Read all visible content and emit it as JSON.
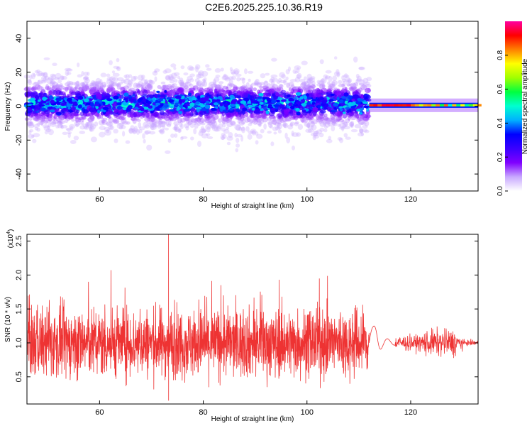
{
  "figure": {
    "title": "C2E6.2025.225.10.36.R19"
  },
  "chart_data": [
    {
      "type": "heatmap",
      "xlabel": "Height of straight line (km)",
      "ylabel": "Frequency (Hz)",
      "xlim": [
        46,
        133
      ],
      "ylim": [
        -50,
        50
      ],
      "x_ticks": [
        60,
        80,
        100,
        120
      ],
      "y_ticks": [
        -40,
        -20,
        0,
        20,
        40
      ],
      "x_tick_labels": [
        "60",
        "80",
        "100",
        "120"
      ],
      "y_tick_labels": [
        "-40",
        "-20",
        "0",
        "20",
        "40"
      ],
      "colorbar": {
        "label": "Normalized spectral amplitude",
        "range": [
          0,
          1
        ],
        "ticks": [
          0.0,
          0.2,
          0.4,
          0.6,
          0.8
        ],
        "tick_labels": [
          "0.0",
          "0.2",
          "0.4",
          "0.6",
          "0.8"
        ],
        "colors": [
          "#ffffff",
          "#c8a8ff",
          "#8000ff",
          "#3a00ff",
          "#0000ff",
          "#00b0ff",
          "#00ffd0",
          "#00ff40",
          "#a0ff00",
          "#ffff00",
          "#ff8000",
          "#ff0000",
          "#ff00a0"
        ]
      },
      "series": [
        {
          "x_range": [
            46,
            112
          ],
          "center_hz": 1.5,
          "spread_hz": 9,
          "peak": 0.45
        },
        {
          "x_range": [
            112,
            133
          ],
          "center_hz": 0.5,
          "spread_hz": 1.5,
          "peak": 0.95
        }
      ]
    },
    {
      "type": "line",
      "xlabel": "Height of straight line (km)",
      "ylabel": "SNR (10 * v/v)",
      "scale_note": "(x10",
      "scale_exp": "4",
      "xlim": [
        46,
        133
      ],
      "ylim": [
        0.1,
        2.6
      ],
      "x_ticks": [
        60,
        80,
        100,
        120
      ],
      "y_ticks": [
        0.5,
        1.0,
        1.5,
        2.0,
        2.5
      ],
      "x_tick_labels": [
        "60",
        "80",
        "100",
        "120"
      ],
      "y_tick_labels": [
        "0.5",
        "1.0",
        "1.5",
        "2.0",
        "2.5"
      ],
      "color": "#ee3333",
      "series": [
        {
          "x_range": [
            46,
            112
          ],
          "mean": 1.0,
          "amplitude": 0.45,
          "max": 2.6,
          "max_at": 73.3
        },
        {
          "x_range": [
            112,
            133
          ],
          "mean": 1.0,
          "amplitude": 0.07
        }
      ]
    }
  ]
}
